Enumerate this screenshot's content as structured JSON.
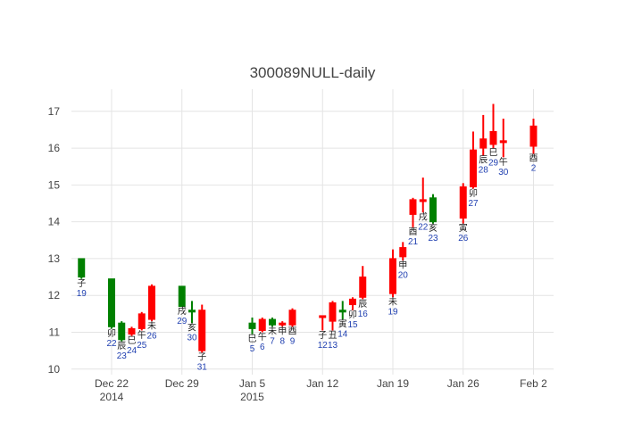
{
  "chart_data": {
    "type": "candlestick",
    "title": "300089NULL-daily",
    "ylim": [
      9.85,
      17.6
    ],
    "y_ticks": [
      10,
      11,
      12,
      13,
      14,
      15,
      16,
      17
    ],
    "x_ticks": [
      {
        "date": "2014-12-22",
        "lines": [
          "Dec 22",
          "2014"
        ]
      },
      {
        "date": "2014-12-29",
        "lines": [
          "Dec 29"
        ]
      },
      {
        "date": "2015-01-05",
        "lines": [
          "Jan 5",
          "2015"
        ]
      },
      {
        "date": "2015-01-12",
        "lines": [
          "Jan 12"
        ]
      },
      {
        "date": "2015-01-19",
        "lines": [
          "Jan 19"
        ]
      },
      {
        "date": "2015-01-26",
        "lines": [
          "Jan 26"
        ]
      },
      {
        "date": "2015-02-02",
        "lines": [
          "Feb 2"
        ]
      }
    ],
    "xlim": [
      "2014-12-18",
      "2015-02-04"
    ],
    "grid": true,
    "colors": {
      "up": "#ff0000",
      "down": "#008000"
    },
    "candles": [
      {
        "date": "2014-12-19",
        "open": 13.0,
        "high": 13.0,
        "low": 12.45,
        "close": 12.5,
        "branch": "子",
        "day": "19"
      },
      {
        "date": "2014-12-22",
        "open": 12.45,
        "high": 12.45,
        "low": 11.1,
        "close": 11.15,
        "branch": "卯",
        "day": "22"
      },
      {
        "date": "2014-12-23",
        "open": 11.25,
        "high": 11.3,
        "low": 10.75,
        "close": 10.8,
        "branch": "辰",
        "day": "23"
      },
      {
        "date": "2014-12-24",
        "open": 10.95,
        "high": 11.15,
        "low": 10.9,
        "close": 11.1,
        "branch": "巳",
        "day": "24"
      },
      {
        "date": "2014-12-25",
        "open": 11.1,
        "high": 11.55,
        "low": 11.05,
        "close": 11.5,
        "branch": "午",
        "day": "25"
      },
      {
        "date": "2014-12-26",
        "open": 11.35,
        "high": 12.3,
        "low": 11.3,
        "close": 12.25,
        "branch": "未",
        "day": "26"
      },
      {
        "date": "2014-12-29",
        "open": 12.25,
        "high": 12.25,
        "low": 11.7,
        "close": 11.7,
        "branch": "戌",
        "day": "29"
      },
      {
        "date": "2014-12-30",
        "open": 11.6,
        "high": 11.85,
        "low": 11.25,
        "close": 11.55,
        "branch": "亥",
        "day": "30"
      },
      {
        "date": "2014-12-31",
        "open": 10.5,
        "high": 11.75,
        "low": 10.45,
        "close": 11.6,
        "branch": "子",
        "day": "31"
      },
      {
        "date": "2015-01-05",
        "open": 11.25,
        "high": 11.4,
        "low": 10.95,
        "close": 11.1,
        "branch": "巳",
        "day": "5"
      },
      {
        "date": "2015-01-06",
        "open": 11.05,
        "high": 11.4,
        "low": 11.0,
        "close": 11.35,
        "branch": "午",
        "day": "6"
      },
      {
        "date": "2015-01-07",
        "open": 11.35,
        "high": 11.4,
        "low": 11.15,
        "close": 11.2,
        "branch": "未",
        "day": "7"
      },
      {
        "date": "2015-01-08",
        "open": 11.2,
        "high": 11.3,
        "low": 11.15,
        "close": 11.25,
        "branch": "申",
        "day": "8"
      },
      {
        "date": "2015-01-09",
        "open": 11.2,
        "high": 11.65,
        "low": 11.15,
        "close": 11.6,
        "branch": "酉",
        "day": "9"
      },
      {
        "date": "2015-01-12",
        "open": 11.4,
        "high": 11.45,
        "low": 11.05,
        "close": 11.45,
        "branch": "子",
        "day": "12"
      },
      {
        "date": "2015-01-13",
        "open": 11.3,
        "high": 11.85,
        "low": 11.05,
        "close": 11.8,
        "branch": "丑",
        "day": "13"
      },
      {
        "date": "2015-01-14",
        "open": 11.6,
        "high": 11.85,
        "low": 11.35,
        "close": 11.55,
        "branch": "寅",
        "day": "14"
      },
      {
        "date": "2015-01-15",
        "open": 11.75,
        "high": 11.95,
        "low": 11.6,
        "close": 11.9,
        "branch": "卯",
        "day": "15"
      },
      {
        "date": "2015-01-16",
        "open": 11.95,
        "high": 12.8,
        "low": 11.9,
        "close": 12.5,
        "branch": "辰",
        "day": "16"
      },
      {
        "date": "2015-01-19",
        "open": 12.05,
        "high": 13.25,
        "low": 11.95,
        "close": 13.0,
        "branch": "未",
        "day": "19"
      },
      {
        "date": "2015-01-20",
        "open": 13.05,
        "high": 13.45,
        "low": 12.95,
        "close": 13.3,
        "branch": "申",
        "day": "20"
      },
      {
        "date": "2015-01-21",
        "open": 14.2,
        "high": 14.65,
        "low": 13.85,
        "close": 14.6,
        "branch": "酉",
        "day": "21"
      },
      {
        "date": "2015-01-22",
        "open": 14.55,
        "high": 15.2,
        "low": 14.25,
        "close": 14.6,
        "branch": "戌",
        "day": "22"
      },
      {
        "date": "2015-01-23",
        "open": 14.65,
        "high": 14.75,
        "low": 13.95,
        "close": 14.0,
        "branch": "亥",
        "day": "23"
      },
      {
        "date": "2015-01-26",
        "open": 14.1,
        "high": 15.05,
        "low": 13.95,
        "close": 14.95,
        "branch": "寅",
        "day": "26"
      },
      {
        "date": "2015-01-27",
        "open": 14.95,
        "high": 16.45,
        "low": 14.9,
        "close": 15.95,
        "branch": "卯",
        "day": "27"
      },
      {
        "date": "2015-01-28",
        "open": 16.0,
        "high": 16.9,
        "low": 15.8,
        "close": 16.25,
        "branch": "辰",
        "day": "28"
      },
      {
        "date": "2015-01-29",
        "open": 16.1,
        "high": 17.2,
        "low": 16.0,
        "close": 16.45,
        "branch": "巳",
        "day": "29"
      },
      {
        "date": "2015-01-30",
        "open": 16.15,
        "high": 16.8,
        "low": 15.75,
        "close": 16.2,
        "branch": "午",
        "day": "30"
      },
      {
        "date": "2015-02-02",
        "open": 16.05,
        "high": 16.8,
        "low": 15.85,
        "close": 16.6,
        "branch": "酉",
        "day": "2"
      }
    ]
  }
}
